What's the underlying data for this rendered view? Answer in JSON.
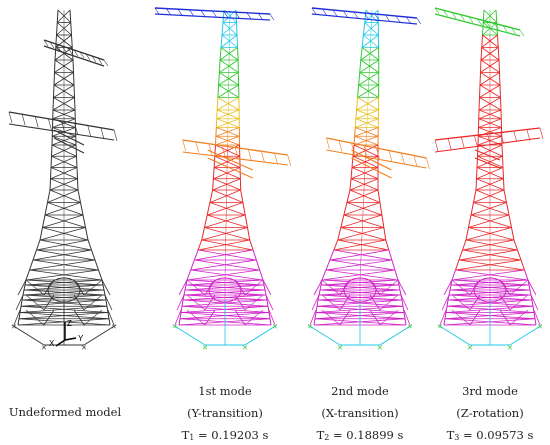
{
  "models": [
    {
      "id": "undeformed",
      "caption": "Undeformed model",
      "color_scheme": "black"
    },
    {
      "id": "mode1",
      "mode_label": "1st mode",
      "description": "(Y-transition)",
      "period_symbol": "T",
      "period_index": "1",
      "period_value": " = 0.19203 s",
      "color_scheme": "rainbow"
    },
    {
      "id": "mode2",
      "mode_label": "2nd mode",
      "description": "(X-transition)",
      "period_symbol": "T",
      "period_index": "2",
      "period_value": " = 0.18899 s",
      "color_scheme": "rainbow"
    },
    {
      "id": "mode3",
      "mode_label": "3rd mode",
      "description": "(Z-rotation)",
      "period_symbol": "T",
      "period_index": "3",
      "period_value": " = 0.09573 s",
      "color_scheme": "rainbow"
    }
  ],
  "axis_labels": {
    "z": "Z",
    "x": "X",
    "y": "Y"
  },
  "colors": {
    "top": "#1f2fd8",
    "cyan": "#20c8e8",
    "green": "#30c830",
    "yellow": "#e8c020",
    "orange": "#f08020",
    "red": "#e82828",
    "magenta": "#d020c8",
    "undeformed": "#333333"
  }
}
